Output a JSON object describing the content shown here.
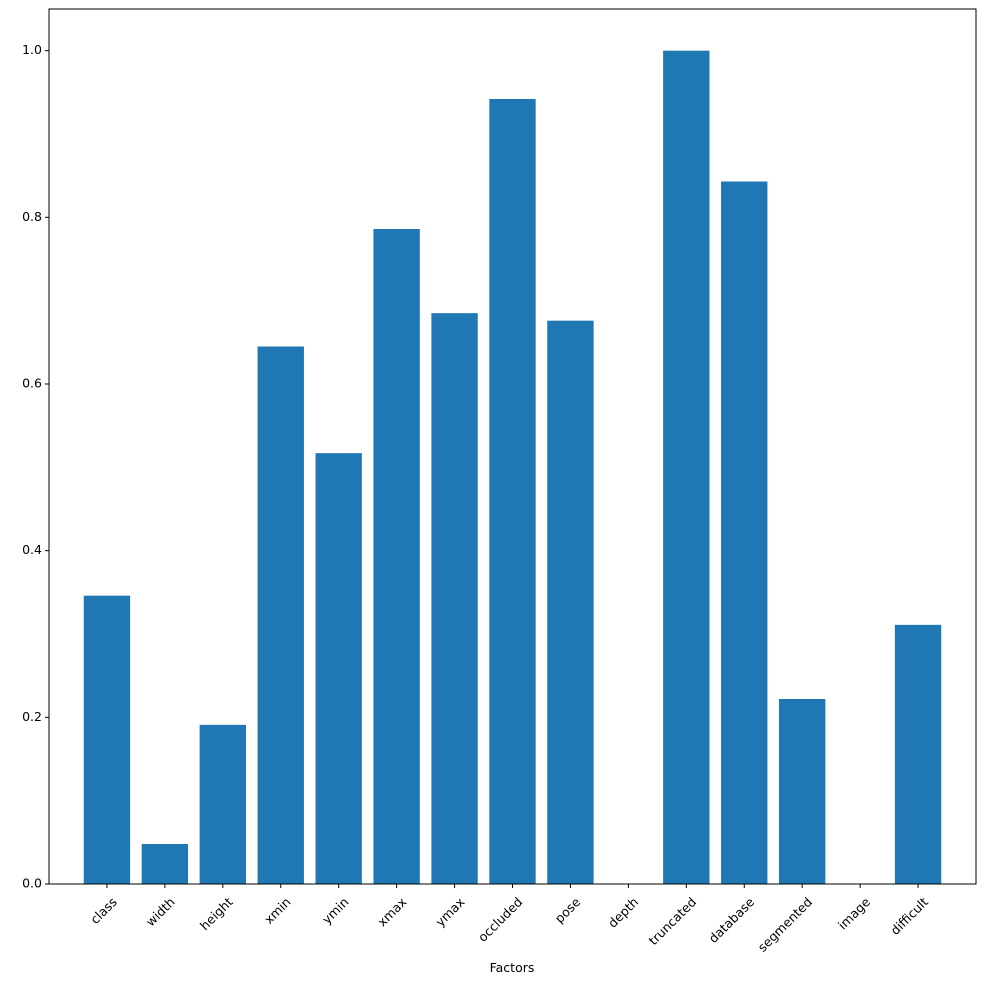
{
  "chart_data": {
    "type": "bar",
    "x_label": "Factors",
    "categories": [
      "class",
      "width",
      "height",
      "xmin",
      "ymin",
      "xmax",
      "ymax",
      "occluded",
      "pose",
      "depth",
      "truncated",
      "database",
      "segmented",
      "image",
      "difficult"
    ],
    "values": [
      0.346,
      0.048,
      0.191,
      0.645,
      0.517,
      0.786,
      0.685,
      0.942,
      0.676,
      0,
      1.0,
      0.843,
      0.222,
      0,
      0.311
    ],
    "color": "#1f77b4",
    "ylim": [
      0,
      1.05
    ],
    "yticks": [
      {
        "value": 0,
        "label": "0.0"
      },
      0.2,
      0.4,
      0.6,
      0.8,
      {
        "value": 1,
        "label": "1.0"
      }
    ]
  }
}
